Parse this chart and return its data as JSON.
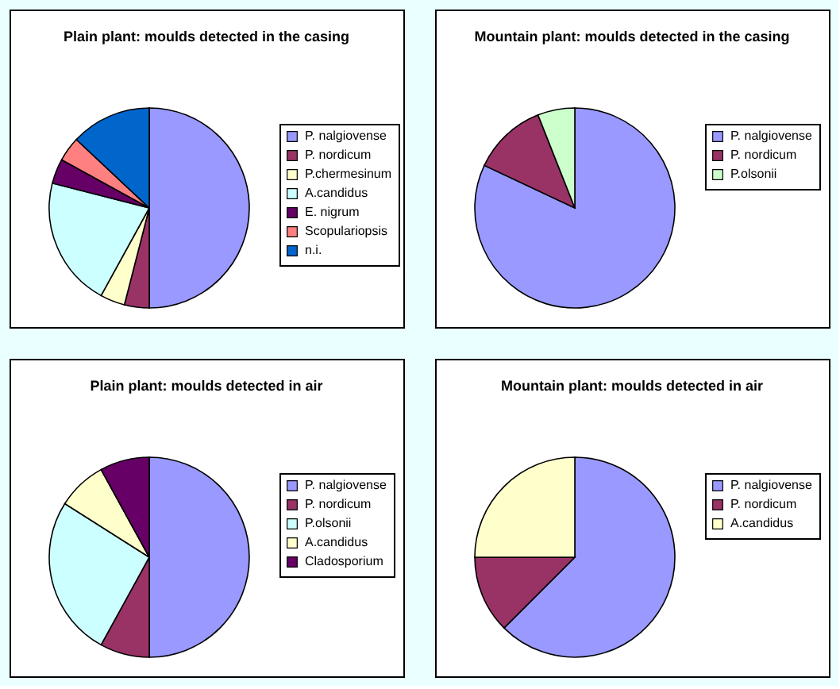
{
  "chart_data": [
    {
      "type": "pie",
      "title": "Plain plant: moulds detected in the casing",
      "categories": [
        "P. nalgiovense",
        "P. nordicum",
        "P.chermesinum",
        "A.candidus",
        "E. nigrum",
        "Scopulariopsis",
        "n.i."
      ],
      "values": [
        50,
        4,
        4,
        21,
        4,
        4,
        13
      ],
      "colors": [
        "#9999ff",
        "#993366",
        "#ffffcc",
        "#ccffff",
        "#660066",
        "#ff8080",
        "#0066cc"
      ],
      "legend": "right"
    },
    {
      "type": "pie",
      "title": "Mountain plant: moulds detected in the casing",
      "categories": [
        "P. nalgiovense",
        "P. nordicum",
        "P.olsonii"
      ],
      "values": [
        82,
        12,
        6
      ],
      "colors": [
        "#9999ff",
        "#993366",
        "#ccffcc"
      ],
      "legend": "right"
    },
    {
      "type": "pie",
      "title": "Plain plant: moulds detected in air",
      "categories": [
        "P. nalgiovense",
        "P. nordicum",
        "P.olsonii",
        "A.candidus",
        "Cladosporium"
      ],
      "values": [
        50,
        8,
        26,
        8,
        8
      ],
      "colors": [
        "#9999ff",
        "#993366",
        "#ccffff",
        "#ffffcc",
        "#660066"
      ],
      "legend": "right"
    },
    {
      "type": "pie",
      "title": "Mountain plant: moulds detected in air",
      "categories": [
        "P. nalgiovense",
        "P. nordicum",
        "A.candidus"
      ],
      "values": [
        62.5,
        12.5,
        25
      ],
      "colors": [
        "#9999ff",
        "#993366",
        "#ffffcc"
      ],
      "legend": "right"
    }
  ]
}
